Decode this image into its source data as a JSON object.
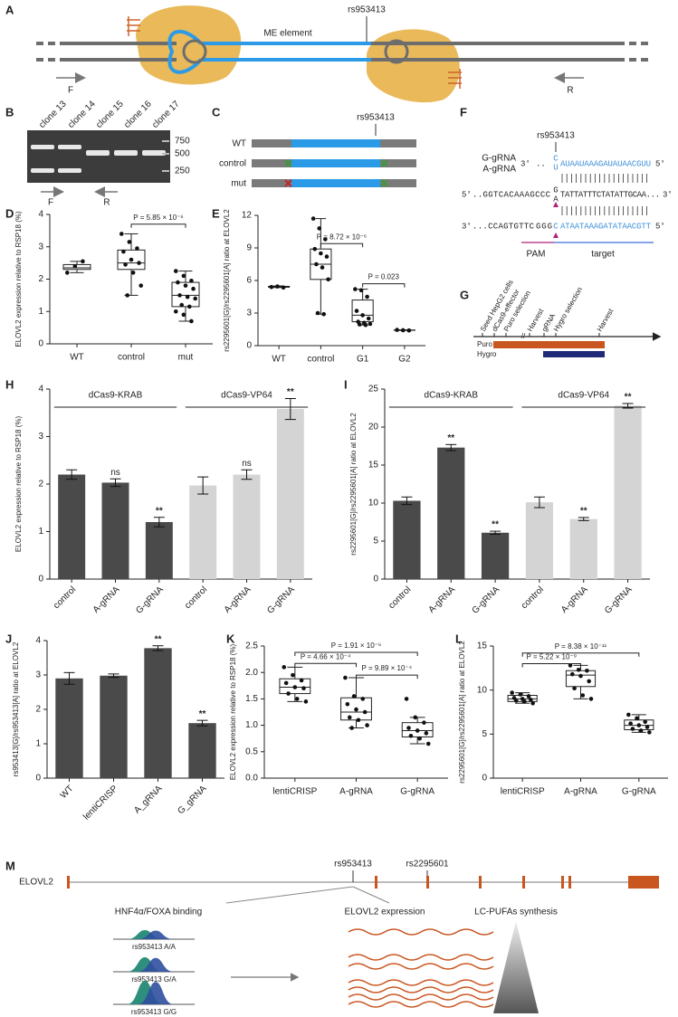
{
  "panel_labels": [
    "A",
    "B",
    "C",
    "D",
    "E",
    "F",
    "G",
    "H",
    "I",
    "J",
    "K",
    "L",
    "M"
  ],
  "panel_a": {
    "snp": "rs953413",
    "element": "ME element",
    "forward": "F",
    "reverse": "R"
  },
  "panel_b": {
    "lanes": [
      "clone 13",
      "clone 14",
      "clone 15",
      "clone 16",
      "clone 17"
    ],
    "ladder": [
      750,
      500,
      250
    ],
    "forward": "F",
    "reverse": "R"
  },
  "panel_c": {
    "snp": "rs953413",
    "rows": [
      "WT",
      "control",
      "mut"
    ]
  },
  "panel_f": {
    "snp": "rs953413",
    "grnas": [
      "G-gRNA",
      "A-gRNA"
    ],
    "rna": {
      "start": "3'",
      "dots": "..",
      "alleles": [
        "C",
        "U"
      ],
      "seq": "AUAAUAAAGAUAUAACGUU",
      "end": "5'"
    },
    "top": {
      "start": "5'",
      "seq1": "..GGTCACAAAGCCC",
      "alleles": [
        "G",
        "A"
      ],
      "seq2": "TATTATTTCTATATTGCAA...",
      "end": "3'"
    },
    "bottom": {
      "start": "3'",
      "seq1": "...CCAGTGTTC",
      "pam": "GGG",
      "snp": "C",
      "seq2": "ATAATAAAGATATAACGTT",
      "end": "5'"
    },
    "pam": "PAM",
    "target": "target"
  },
  "panel_g": {
    "steps": [
      "Seed HepG2 cells",
      "dCas9-effector",
      "Puro selection",
      "Harvest",
      "gRNA",
      "Hygro selection",
      "Harvest"
    ],
    "bars": [
      "Puro",
      "Hygro"
    ]
  },
  "chart_data": [
    {
      "type": "box",
      "ylabel": "ELOVL2 expression relative to RSP18 (%)",
      "categories": [
        "WT",
        "control",
        "mut"
      ],
      "ylim": [
        0,
        4
      ],
      "yticks": [
        0,
        1,
        2,
        3,
        4
      ],
      "boxes": [
        {
          "low": 2.2,
          "q1": 2.3,
          "median": 2.35,
          "q3": 2.45,
          "high": 2.55,
          "points": [
            2.2,
            2.4,
            2.55
          ]
        },
        {
          "low": 1.5,
          "q1": 2.3,
          "median": 2.5,
          "q3": 2.9,
          "high": 3.4,
          "points": [
            3.4,
            3.15,
            2.95,
            2.85,
            2.6,
            2.5,
            2.45,
            2.2,
            1.8,
            1.5
          ]
        },
        {
          "low": 0.7,
          "q1": 1.15,
          "median": 1.5,
          "q3": 1.9,
          "high": 2.25,
          "points": [
            2.25,
            2.1,
            1.95,
            1.9,
            1.8,
            1.7,
            1.5,
            1.45,
            1.4,
            1.2,
            1.15,
            1.0,
            0.9,
            0.7
          ]
        }
      ],
      "annotations": [
        "P = 5.85 × 10⁻⁶"
      ]
    },
    {
      "type": "box",
      "ylabel": "rs2295601[G]/rs2295601[A] ratio at ELOVL2",
      "categories": [
        "WT",
        "control",
        "G1",
        "G2"
      ],
      "ylim": [
        0,
        12
      ],
      "yticks": [
        0,
        3,
        6,
        9,
        12
      ],
      "boxes": [
        {
          "low": 5.35,
          "q1": 5.38,
          "median": 5.42,
          "q3": 5.46,
          "high": 5.5,
          "points": [
            5.4,
            5.45,
            5.35
          ]
        },
        {
          "low": 2.9,
          "q1": 6.1,
          "median": 7.5,
          "q3": 8.9,
          "high": 11.7,
          "points": [
            11.7,
            10.8,
            9.8,
            8.9,
            8.5,
            8.2,
            7.5,
            7.2,
            6.1,
            3.0,
            2.9
          ]
        },
        {
          "low": 1.9,
          "q1": 2.2,
          "median": 2.8,
          "q3": 4.2,
          "high": 5.2,
          "points": [
            5.2,
            5.1,
            4.5,
            3.2,
            2.8,
            2.5,
            2.2,
            2.1,
            2.0,
            1.95,
            1.9
          ]
        },
        {
          "low": 1.4,
          "q1": 1.41,
          "median": 1.42,
          "q3": 1.44,
          "high": 1.45,
          "points": [
            1.45,
            1.42,
            1.4
          ]
        }
      ],
      "annotations": [
        "P = 8.72 × 10⁻⁶",
        "P = 0.023"
      ]
    },
    {
      "type": "bar",
      "ylabel": "ELOVL2 expression relative to RSP18 (%)",
      "categories": [
        "control",
        "A-gRNA",
        "G-gRNA",
        "control",
        "A-gRNA",
        "G-gRNA"
      ],
      "ylim": [
        0,
        4
      ],
      "yticks": [
        0,
        1,
        2,
        3,
        4
      ],
      "values": [
        2.2,
        2.03,
        1.2,
        1.97,
        2.2,
        3.58
      ],
      "errors": [
        0.1,
        0.08,
        0.1,
        0.18,
        0.1,
        0.22
      ],
      "colors": [
        "#4a4a4a",
        "#4a4a4a",
        "#4a4a4a",
        "#d4d4d4",
        "#d4d4d4",
        "#d4d4d4"
      ],
      "significance": [
        null,
        "ns",
        "**",
        null,
        "ns",
        "**"
      ],
      "groups": [
        "dCas9-KRAB",
        "dCas9-VP64"
      ]
    },
    {
      "type": "bar",
      "ylabel": "rs2295601[G]/rs2295601[A] ratio at ELOVL2",
      "categories": [
        "control",
        "A-gRNA",
        "G-gRNA",
        "control",
        "A-gRNA",
        "G-gRNA"
      ],
      "ylim": [
        0,
        25
      ],
      "yticks": [
        0,
        5,
        10,
        15,
        20,
        25
      ],
      "values": [
        10.3,
        17.3,
        6.1,
        10.1,
        7.9,
        22.8
      ],
      "errors": [
        0.5,
        0.4,
        0.2,
        0.7,
        0.2,
        0.3
      ],
      "colors": [
        "#4a4a4a",
        "#4a4a4a",
        "#4a4a4a",
        "#d4d4d4",
        "#d4d4d4",
        "#d4d4d4"
      ],
      "significance": [
        null,
        "**",
        "**",
        null,
        "**",
        "**"
      ],
      "groups": [
        "dCas9-KRAB",
        "dCas9-VP64"
      ]
    },
    {
      "type": "bar",
      "ylabel": "rs953413[G]/rs953413[A] ratio at ELOVL2",
      "categories": [
        "WT",
        "lentiCRISP",
        "A_gRNA",
        "G_gRNA"
      ],
      "ylim": [
        0,
        4
      ],
      "yticks": [
        0,
        1,
        2,
        3,
        4
      ],
      "values": [
        2.9,
        2.98,
        3.78,
        1.6
      ],
      "errors": [
        0.17,
        0.05,
        0.07,
        0.08
      ],
      "colors": [
        "#4a4a4a",
        "#4a4a4a",
        "#4a4a4a",
        "#4a4a4a"
      ],
      "significance": [
        null,
        null,
        "**",
        "**"
      ]
    },
    {
      "type": "box",
      "ylabel": "ELOVL2 expression relative to RSP18 (%)",
      "categories": [
        "lentiCRISP",
        "A-gRNA",
        "G-gRNA"
      ],
      "ylim": [
        0,
        2.5
      ],
      "yticks": [
        {
          "value": 0,
          "label": "0.0"
        },
        0.5,
        {
          "value": 1,
          "label": "1.0"
        },
        1.5,
        {
          "value": 2,
          "label": "2.0"
        },
        2.5
      ],
      "boxes": [
        {
          "low": 1.45,
          "q1": 1.6,
          "median": 1.72,
          "q3": 1.88,
          "high": 2.1,
          "points": [
            2.1,
            1.95,
            1.85,
            1.8,
            1.72,
            1.7,
            1.6,
            1.5,
            1.45
          ]
        },
        {
          "low": 0.95,
          "q1": 1.1,
          "median": 1.25,
          "q3": 1.52,
          "high": 1.9,
          "points": [
            1.9,
            1.55,
            1.5,
            1.4,
            1.3,
            1.25,
            1.15,
            1.1,
            1.0,
            0.95
          ]
        },
        {
          "low": 0.65,
          "q1": 0.78,
          "median": 0.9,
          "q3": 1.05,
          "high": 1.15,
          "points": [
            1.5,
            1.15,
            1.05,
            0.95,
            0.9,
            0.85,
            0.8,
            0.75,
            0.65
          ]
        }
      ],
      "annotations": [
        "P = 1.91 × 10⁻⁶",
        "P = 4.66 × 10⁻⁴",
        "P = 9.89 × 10⁻⁴"
      ]
    },
    {
      "type": "box",
      "ylabel": "rs2295601[G]/rs2295601[A] ratio at ELOVL2",
      "categories": [
        "lentiCRISP",
        "A-gRNA",
        "G-gRNA"
      ],
      "ylim": [
        0,
        15
      ],
      "yticks": [
        0,
        5,
        10,
        15
      ],
      "boxes": [
        {
          "low": 8.5,
          "q1": 8.7,
          "median": 9.0,
          "q3": 9.4,
          "high": 9.7,
          "points": [
            9.7,
            9.5,
            9.3,
            9.1,
            9.0,
            8.9,
            8.8,
            8.7,
            8.5
          ]
        },
        {
          "low": 9.0,
          "q1": 10.4,
          "median": 11.7,
          "q3": 12.2,
          "high": 12.8,
          "points": [
            12.8,
            12.3,
            12.2,
            11.8,
            11.6,
            11.0,
            10.2,
            9.4,
            9.0
          ]
        },
        {
          "low": 5.2,
          "q1": 5.5,
          "median": 6.0,
          "q3": 6.6,
          "high": 7.2,
          "points": [
            7.2,
            6.8,
            6.4,
            6.2,
            6.0,
            5.8,
            5.6,
            5.4,
            5.2
          ]
        }
      ],
      "annotations": [
        "P = 8.38 × 10⁻¹¹",
        "P = 5.22 × 10⁻⁹"
      ]
    }
  ],
  "panel_m": {
    "gene": "ELOVL2",
    "snps": [
      "rs953413",
      "rs2295601"
    ],
    "headings": [
      "HNF4α/FOXA binding",
      "ELOVL2 expression",
      "LC-PUFAs synthesis"
    ],
    "genotypes": [
      "rs953413 A/A",
      "rs953413 G/A",
      "rs953413 G/G"
    ]
  }
}
